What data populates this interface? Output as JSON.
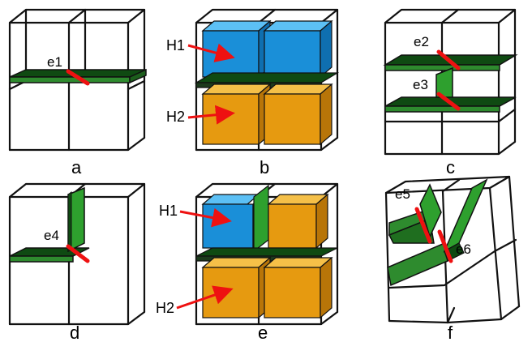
{
  "colors": {
    "green_face": "#2e8b2e",
    "green_dark": "#0f4a12",
    "blue_face": "#1a8fd8",
    "blue_light": "#5cc0f5",
    "orange_face": "#e69a10",
    "orange_light": "#f5c048",
    "red_edge": "#ee1111",
    "outline": "#111111"
  },
  "panels": {
    "a": {
      "label": "a"
    },
    "b": {
      "label": "b"
    },
    "c": {
      "label": "c"
    },
    "d": {
      "label": "d"
    },
    "e": {
      "label": "e"
    },
    "f": {
      "label": "f"
    }
  },
  "edge_labels": {
    "e1": "e1",
    "e2": "e2",
    "e3": "e3",
    "e4": "e4",
    "e5": "e5",
    "e6": "e6"
  },
  "block_labels": {
    "b_h1": "H1",
    "b_h2": "H2",
    "e_h1": "H1",
    "e_h2": "H2"
  }
}
